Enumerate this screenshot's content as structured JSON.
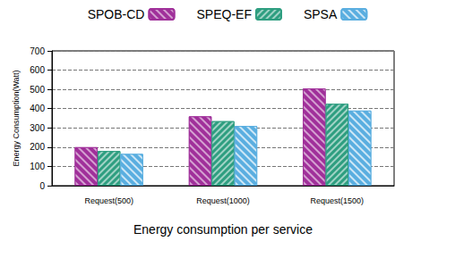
{
  "chart_data": {
    "type": "bar",
    "xlabel": "Energy consumption per service",
    "ylabel": "Energy Consumption(Watt)",
    "categories": [
      "Request(500)",
      "Request(1000)",
      "Request(1500)"
    ],
    "series": [
      {
        "name": "SPOB-CD",
        "color": "#a0309a",
        "values": [
          200,
          360,
          505
        ]
      },
      {
        "name": "SPEQ-EF",
        "color": "#2e9e80",
        "values": [
          180,
          335,
          425
        ]
      },
      {
        "name": "SPSA",
        "color": "#5aaee0",
        "values": [
          165,
          310,
          390
        ]
      }
    ],
    "ylim": [
      0,
      700
    ],
    "yticks": [
      0,
      100,
      200,
      300,
      400,
      500,
      600,
      700
    ],
    "grid": true,
    "legend": "top"
  }
}
